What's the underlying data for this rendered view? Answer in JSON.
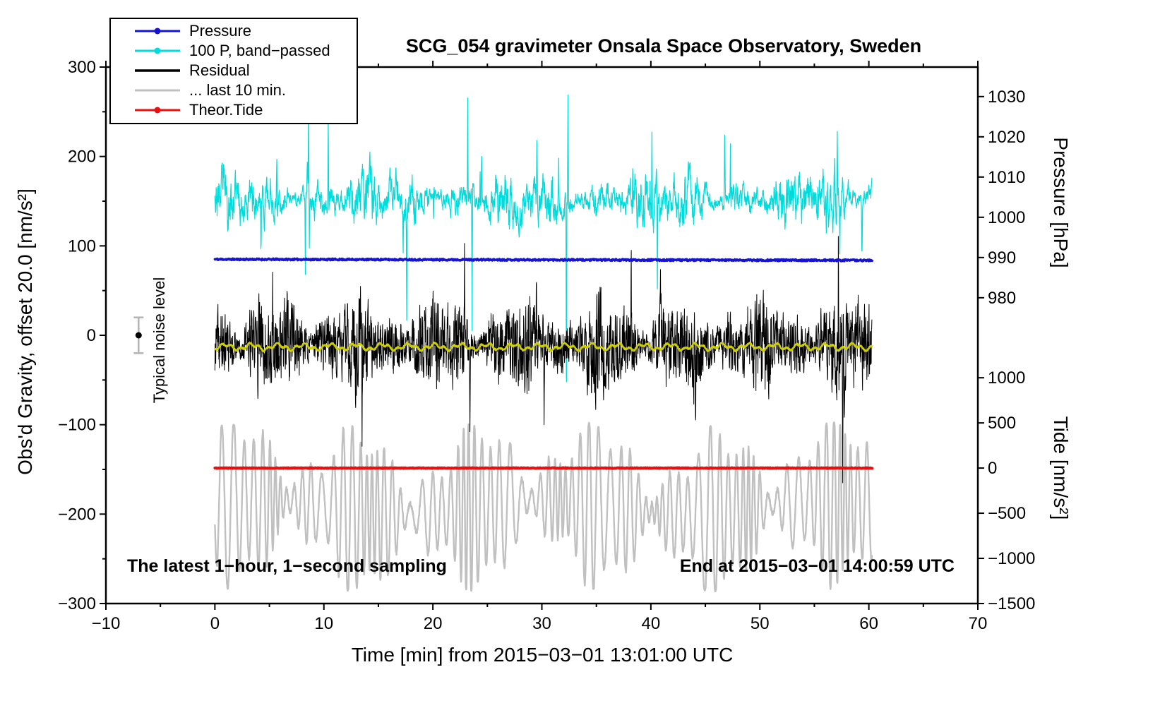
{
  "chart_data": {
    "type": "line",
    "title": "SCG_054 gravimeter Onsala Space Observatory, Sweden",
    "xlabel": "Time [min] from 2015−03−01 13:01:00 UTC",
    "ylabel_left": "Obs'd Gravity, offset 20.0 [nm/s²]",
    "ylabel_pressure": "Pressure [hPa]",
    "ylabel_tide": "Tide [nm/s²]",
    "xlim": [
      -10,
      70
    ],
    "ylim_left": [
      -300,
      300
    ],
    "x_ticks": [
      -10,
      0,
      10,
      20,
      30,
      40,
      50,
      60,
      70
    ],
    "x_minor_step": 5,
    "y_ticks_left": [
      -300,
      -200,
      -100,
      0,
      100,
      200,
      300
    ],
    "y_minor_step_left": 50,
    "pressure_axis": {
      "ticks": [
        1030,
        1020,
        1010,
        1000,
        990,
        980
      ],
      "gravity_positions": [
        267,
        222,
        177,
        132,
        87,
        42
      ]
    },
    "tide_axis": {
      "ticks": [
        1000,
        500,
        0,
        -500,
        -1000,
        -1500
      ],
      "gravity_positions": [
        -47.5,
        -98,
        -148.5,
        -199,
        -249.5,
        -300
      ]
    },
    "legend": [
      {
        "label": "Pressure",
        "color": "#1414d2",
        "marker": true
      },
      {
        "label": "100 P, band−passed",
        "color": "#00dcdc",
        "marker": true
      },
      {
        "label": "Residual",
        "color": "#000000",
        "marker": false
      },
      {
        "label": "... last 10 min.",
        "color": "#c0c0c0",
        "marker": false
      },
      {
        "label": "Theor.Tide",
        "color": "#ea1010",
        "marker": true
      }
    ],
    "annotations": {
      "bottom_left": "The latest 1−hour, 1−second sampling",
      "bottom_right": "End at 2015−03−01 14:00:59 UTC",
      "noise_label": "Typical noise level"
    },
    "noise_marker": {
      "x": -7,
      "y": 0,
      "error": 20,
      "color_point": "#000000",
      "color_bar": "#b4b4b4"
    },
    "series": [
      {
        "name": "100 P, band−passed",
        "kind": "band",
        "color": "#00dcdc",
        "width": 1.2,
        "x_start": 0,
        "x_end": 60.3,
        "baseline": 152,
        "ar": 0.82,
        "kick": 22,
        "env1": 13,
        "env2": 4.3,
        "random_spikes": 22,
        "extremes_up": [
          [
            8.6,
            252
          ],
          [
            10.4,
            246
          ],
          [
            23.2,
            272
          ],
          [
            32.4,
            281
          ],
          [
            40.1,
            235
          ],
          [
            47.3,
            230
          ],
          [
            57.1,
            238
          ]
        ],
        "extremes_down": [
          [
            8.3,
            62
          ],
          [
            17.6,
            25
          ],
          [
            23.6,
            -8
          ],
          [
            32.25,
            -95
          ],
          [
            40.6,
            38
          ]
        ],
        "seed": 23
      },
      {
        "name": "... last 10 min.",
        "kind": "oscillation",
        "color": "#c0c0c0",
        "width": 2.4,
        "x_start": 0,
        "x_end": 60.3,
        "baseline": -192,
        "typ_amp": 55,
        "approx_range": [
          -285,
          -100
        ],
        "seed": 53
      },
      {
        "name": "Residual",
        "kind": "band",
        "color": "#000000",
        "width": 1,
        "x_start": 0,
        "x_end": 60.3,
        "baseline": -11,
        "ar": 0.45,
        "kick": 62,
        "env1": 7.5,
        "env2": 3.1,
        "random_spikes": 12,
        "extremes_up": [
          [
            5.3,
            60
          ],
          [
            22.9,
            78
          ],
          [
            29.5,
            84
          ],
          [
            38.2,
            72
          ],
          [
            57.2,
            66
          ]
        ],
        "extremes_down": [
          [
            13.5,
            -78
          ],
          [
            23.4,
            -88
          ],
          [
            30.2,
            -98
          ],
          [
            44.1,
            -84
          ],
          [
            57.6,
            -112
          ]
        ],
        "seed": 37
      },
      {
        "name": "Residual smoothed",
        "kind": "smooth",
        "color": "#cfcf00",
        "width": 2.5,
        "x_start": 0,
        "x_end": 60.3,
        "baseline": -13,
        "amp": 3,
        "seed": 41
      },
      {
        "name": "Pressure",
        "kind": "flat",
        "color": "#1414d2",
        "width": 3.5,
        "x_start": 0,
        "x_end": 60.3,
        "baseline": 85,
        "slope": -0.02,
        "noise": 0.9,
        "approx_pressure_hpa": 988.5,
        "seed": 11
      },
      {
        "name": "Theor.Tide",
        "kind": "flat",
        "color": "#ea1010",
        "width": 4,
        "x_start": 0,
        "x_end": 60.3,
        "baseline": -148.5,
        "slope": 0,
        "noise": 0.4,
        "tide_value_nms2": 0,
        "seed": 61
      }
    ]
  }
}
